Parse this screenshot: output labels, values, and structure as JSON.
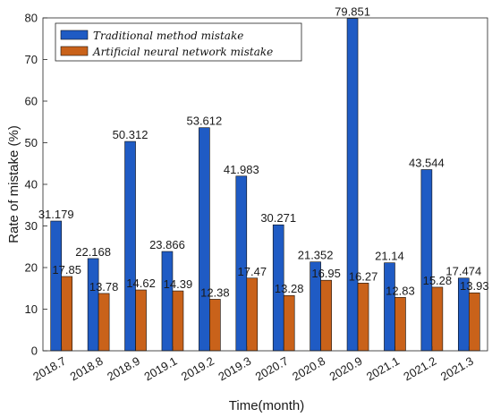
{
  "chart_data": {
    "type": "bar",
    "title": "",
    "xlabel": "Time(month)",
    "ylabel": "Rate of mistake (%)",
    "ylim": [
      0,
      80
    ],
    "yticks": [
      0,
      10,
      20,
      30,
      40,
      50,
      60,
      70,
      80
    ],
    "grid": false,
    "legend_position": "top-left",
    "categories": [
      "2018.7",
      "2018.8",
      "2018.9",
      "2019.1",
      "2019.2",
      "2019.3",
      "2020.7",
      "2020.8",
      "2020.9",
      "2021.1",
      "2021.2",
      "2021.3"
    ],
    "series": [
      {
        "name": "Traditional method mistake",
        "color": "#1f5bc4",
        "values": [
          31.179,
          22.168,
          50.312,
          23.866,
          53.612,
          41.983,
          30.271,
          21.352,
          79.851,
          21.14,
          43.544,
          17.474
        ],
        "labels": [
          "31.179",
          "22.168",
          "50.312",
          "23.866",
          "53.612",
          "41.983",
          "30.271",
          "21.352",
          "79.851",
          "21.14",
          "43.544",
          "17.474"
        ]
      },
      {
        "name": "Artificial neural network mistake",
        "color": "#c9621a",
        "values": [
          17.85,
          13.78,
          14.62,
          14.39,
          12.38,
          17.47,
          13.28,
          16.95,
          16.27,
          12.83,
          15.28,
          13.93
        ],
        "labels": [
          "17.85",
          "13.78",
          "14.62",
          "14.39",
          "12.38",
          "17.47",
          "13.28",
          "16.95",
          "16.27",
          "12.83",
          "15.28",
          "13.93"
        ]
      }
    ]
  }
}
